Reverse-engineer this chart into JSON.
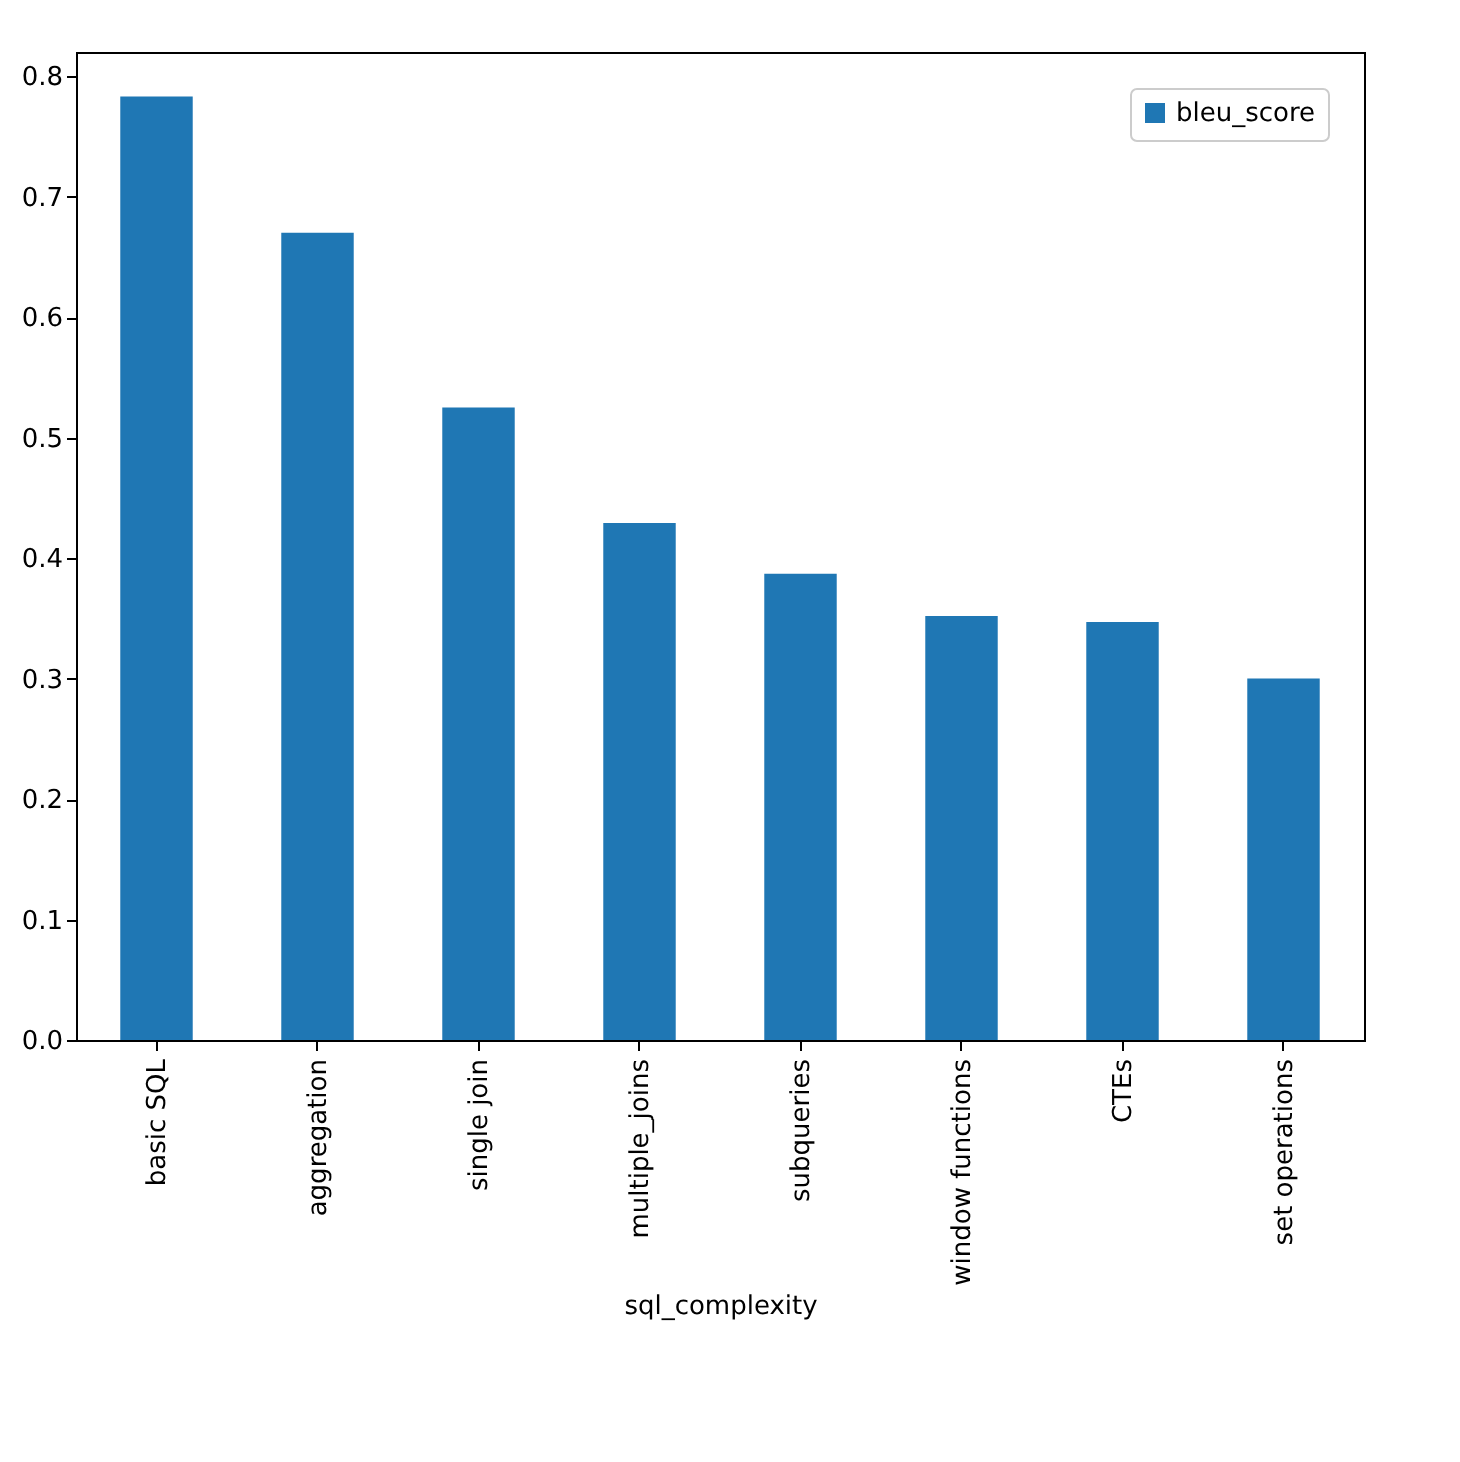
{
  "chart_data": {
    "type": "bar",
    "xlabel": "sql_complexity",
    "categories": [
      "basic SQL",
      "aggregation",
      "single join",
      "multiple_joins",
      "subqueries",
      "window functions",
      "CTEs",
      "set operations"
    ],
    "series": [
      {
        "name": "bleu_score",
        "color": "#1f77b4",
        "values": [
          0.783,
          0.67,
          0.525,
          0.429,
          0.387,
          0.352,
          0.347,
          0.3
        ]
      }
    ],
    "ylim": [
      0,
      0.82
    ],
    "yticks": [
      {
        "value": 0,
        "label": "0.0"
      },
      0.1,
      0.2,
      0.3,
      0.4,
      0.5,
      0.6,
      0.7,
      0.8
    ],
    "grid": false,
    "legend": "top right"
  }
}
